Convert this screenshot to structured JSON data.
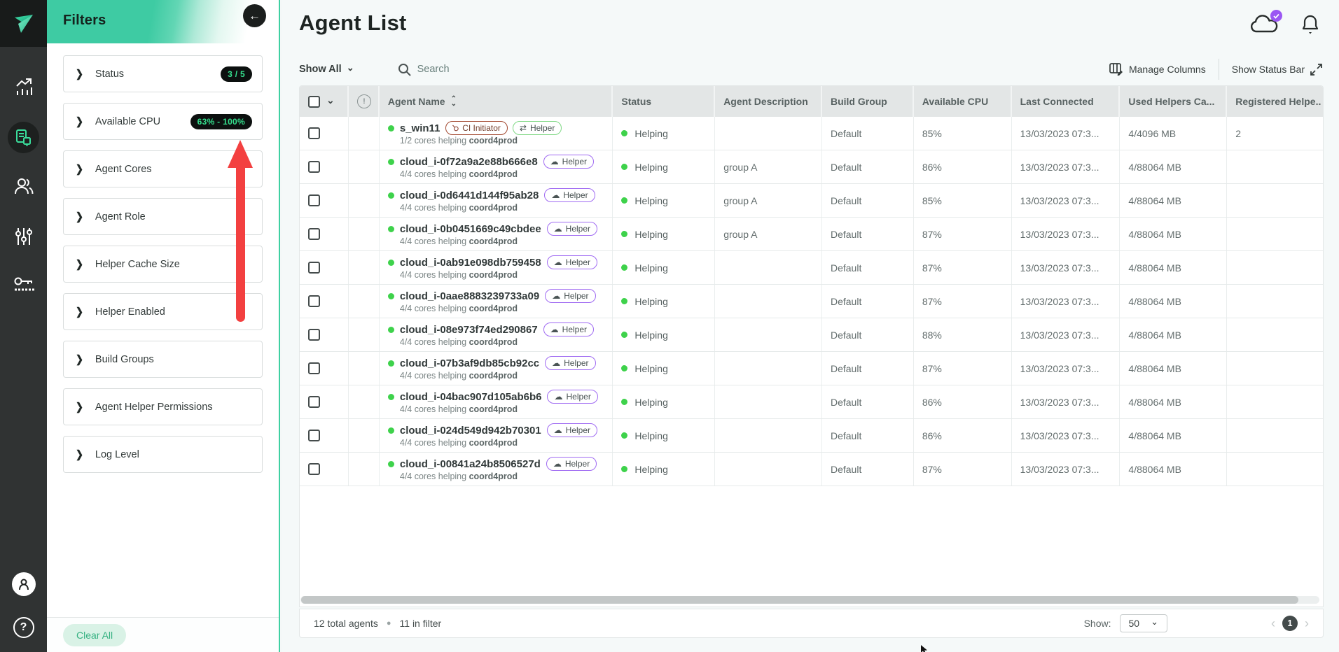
{
  "sidebar_nav": {
    "icons": [
      "logo",
      "analytics",
      "agents",
      "users",
      "sliders",
      "access-key",
      "profile",
      "help"
    ],
    "help_glyph": "?"
  },
  "filters_panel": {
    "title": "Filters",
    "items": [
      {
        "label": "Status",
        "badge": "3 / 5"
      },
      {
        "label": "Available CPU",
        "badge": "63% - 100%"
      },
      {
        "label": "Agent Cores",
        "badge": ""
      },
      {
        "label": "Agent Role",
        "badge": ""
      },
      {
        "label": "Helper Cache Size",
        "badge": ""
      },
      {
        "label": "Helper Enabled",
        "badge": ""
      },
      {
        "label": "Build Groups",
        "badge": ""
      },
      {
        "label": "Agent Helper Permissions",
        "badge": ""
      },
      {
        "label": "Log Level",
        "badge": ""
      }
    ],
    "clear_all_label": "Clear All",
    "badge_bg": "#0c100f",
    "badge_text_color": "#35e08e",
    "accent_border": "#3fd0a2"
  },
  "header": {
    "title": "Agent List"
  },
  "toolbar": {
    "show_all_label": "Show All",
    "search_placeholder": "Search",
    "manage_columns_label": "Manage Columns",
    "show_status_bar_label": "Show Status Bar"
  },
  "table": {
    "columns": [
      "Agent Name",
      "Status",
      "Agent Description",
      "Build Group",
      "Available CPU",
      "Last Connected",
      "Used Helpers Ca...",
      "Registered Helpe.."
    ],
    "rows": [
      {
        "name": "s_win11",
        "badges": [
          {
            "label": "CI Initiator",
            "variant": "ci"
          },
          {
            "label": "Helper",
            "variant": "sync"
          }
        ],
        "cores_text": "1/2 cores helping",
        "coord_text": "coord4prod",
        "status": "Helping",
        "description": "",
        "build_group": "Default",
        "available_cpu": "85%",
        "last_connected": "13/03/2023 07:3...",
        "used_helpers": "4/4096 MB",
        "registered_helpers": "2"
      },
      {
        "name": "cloud_i-0f72a9a2e88b666e8",
        "badges": [
          {
            "label": "Helper",
            "variant": "cloud"
          }
        ],
        "cores_text": "4/4 cores helping",
        "coord_text": "coord4prod",
        "status": "Helping",
        "description": "group A",
        "build_group": "Default",
        "available_cpu": "86%",
        "last_connected": "13/03/2023 07:3...",
        "used_helpers": "4/88064 MB",
        "registered_helpers": ""
      },
      {
        "name": "cloud_i-0d6441d144f95ab28",
        "badges": [
          {
            "label": "Helper",
            "variant": "cloud"
          }
        ],
        "cores_text": "4/4 cores helping",
        "coord_text": "coord4prod",
        "status": "Helping",
        "description": "group A",
        "build_group": "Default",
        "available_cpu": "85%",
        "last_connected": "13/03/2023 07:3...",
        "used_helpers": "4/88064 MB",
        "registered_helpers": ""
      },
      {
        "name": "cloud_i-0b0451669c49cbdee",
        "badges": [
          {
            "label": "Helper",
            "variant": "cloud"
          }
        ],
        "cores_text": "4/4 cores helping",
        "coord_text": "coord4prod",
        "status": "Helping",
        "description": "group A",
        "build_group": "Default",
        "available_cpu": "87%",
        "last_connected": "13/03/2023 07:3...",
        "used_helpers": "4/88064 MB",
        "registered_helpers": ""
      },
      {
        "name": "cloud_i-0ab91e098db759458",
        "badges": [
          {
            "label": "Helper",
            "variant": "cloud"
          }
        ],
        "cores_text": "4/4 cores helping",
        "coord_text": "coord4prod",
        "status": "Helping",
        "description": "",
        "build_group": "Default",
        "available_cpu": "87%",
        "last_connected": "13/03/2023 07:3...",
        "used_helpers": "4/88064 MB",
        "registered_helpers": ""
      },
      {
        "name": "cloud_i-0aae8883239733a09",
        "badges": [
          {
            "label": "Helper",
            "variant": "cloud"
          }
        ],
        "cores_text": "4/4 cores helping",
        "coord_text": "coord4prod",
        "status": "Helping",
        "description": "",
        "build_group": "Default",
        "available_cpu": "87%",
        "last_connected": "13/03/2023 07:3...",
        "used_helpers": "4/88064 MB",
        "registered_helpers": ""
      },
      {
        "name": "cloud_i-08e973f74ed290867",
        "badges": [
          {
            "label": "Helper",
            "variant": "cloud"
          }
        ],
        "cores_text": "4/4 cores helping",
        "coord_text": "coord4prod",
        "status": "Helping",
        "description": "",
        "build_group": "Default",
        "available_cpu": "88%",
        "last_connected": "13/03/2023 07:3...",
        "used_helpers": "4/88064 MB",
        "registered_helpers": ""
      },
      {
        "name": "cloud_i-07b3af9db85cb92cc",
        "badges": [
          {
            "label": "Helper",
            "variant": "cloud"
          }
        ],
        "cores_text": "4/4 cores helping",
        "coord_text": "coord4prod",
        "status": "Helping",
        "description": "",
        "build_group": "Default",
        "available_cpu": "87%",
        "last_connected": "13/03/2023 07:3...",
        "used_helpers": "4/88064 MB",
        "registered_helpers": ""
      },
      {
        "name": "cloud_i-04bac907d105ab6b6",
        "badges": [
          {
            "label": "Helper",
            "variant": "cloud"
          }
        ],
        "cores_text": "4/4 cores helping",
        "coord_text": "coord4prod",
        "status": "Helping",
        "description": "",
        "build_group": "Default",
        "available_cpu": "86%",
        "last_connected": "13/03/2023 07:3...",
        "used_helpers": "4/88064 MB",
        "registered_helpers": ""
      },
      {
        "name": "cloud_i-024d549d942b70301",
        "badges": [
          {
            "label": "Helper",
            "variant": "cloud"
          }
        ],
        "cores_text": "4/4 cores helping",
        "coord_text": "coord4prod",
        "status": "Helping",
        "description": "",
        "build_group": "Default",
        "available_cpu": "86%",
        "last_connected": "13/03/2023 07:3...",
        "used_helpers": "4/88064 MB",
        "registered_helpers": ""
      },
      {
        "name": "cloud_i-00841a24b8506527d",
        "badges": [
          {
            "label": "Helper",
            "variant": "cloud"
          }
        ],
        "cores_text": "4/4 cores helping",
        "coord_text": "coord4prod",
        "status": "Helping",
        "description": "",
        "build_group": "Default",
        "available_cpu": "87%",
        "last_connected": "13/03/2023 07:3...",
        "used_helpers": "4/88064 MB",
        "registered_helpers": ""
      }
    ],
    "status_dot_color": "#3ed24b",
    "helper_badge_color": "#a06bf2",
    "ci_badge_color": "#a34a31"
  },
  "footer": {
    "total_label": "12 total agents",
    "filter_label": "11 in filter",
    "show_label": "Show:",
    "page_size": "50",
    "current_page": "1",
    "prev_glyph": "‹",
    "next_glyph": "›"
  },
  "annotation": {
    "arrow_color": "#f34040"
  }
}
